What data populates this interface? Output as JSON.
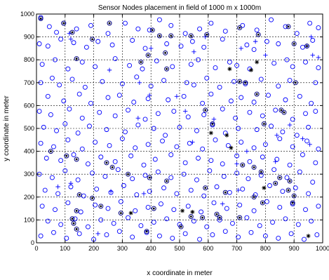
{
  "chart_data": {
    "type": "scatter",
    "title": "Sensor Nodes placement in field of 1000 m x 1000m",
    "xlabel": "x coordinate in meter",
    "ylabel": "y coordinate in meter",
    "xlim": [
      0,
      1000
    ],
    "ylim": [
      0,
      1000
    ],
    "xticks": [
      0,
      100,
      200,
      300,
      400,
      500,
      600,
      700,
      800,
      900,
      1000
    ],
    "yticks": [
      0,
      100,
      200,
      300,
      400,
      500,
      600,
      700,
      800,
      900,
      1000
    ],
    "grid": true,
    "grid_style": "dashed",
    "colors": {
      "marker": "#0000ff",
      "dark": "#000080",
      "axis": "#000000"
    },
    "series": [
      {
        "marker": "o",
        "color": "#0000ff",
        "x": [
          15,
          45,
          70,
          95,
          140,
          190,
          250,
          310,
          355,
          395,
          430,
          470,
          520,
          570,
          610,
          660,
          720,
          770,
          820,
          870,
          910,
          955,
          985,
          10,
          40,
          85,
          130,
          175,
          215,
          265,
          335,
          380,
          455,
          505,
          545,
          585,
          650,
          735,
          760,
          805,
          845,
          930,
          965,
          20,
          65,
          110,
          160,
          205,
          275,
          325,
          370,
          420,
          475,
          540,
          565,
          625,
          675,
          700,
          745,
          830,
          875,
          895,
          940,
          985,
          15,
          55,
          80,
          125,
          170,
          230,
          300,
          350,
          400,
          445,
          525,
          550,
          595,
          640,
          690,
          730,
          785,
          845,
          885,
          975,
          40,
          95,
          150,
          190,
          250,
          290,
          340,
          390,
          460,
          515,
          580,
          610,
          680,
          715,
          760,
          810,
          870,
          920,
          960,
          10,
          50,
          115,
          160,
          220,
          275,
          320,
          380,
          425,
          480,
          530,
          585,
          650,
          695,
          745,
          790,
          835,
          895,
          940,
          975,
          25,
          70,
          100,
          145,
          185,
          245,
          310,
          355,
          410,
          450,
          500,
          560,
          615,
          660,
          705,
          770,
          820,
          860,
          910,
          950,
          15,
          60,
          110,
          160,
          205,
          255,
          300,
          345,
          390,
          440,
          490,
          535,
          580,
          625,
          670,
          715,
          760,
          800,
          850,
          895,
          945,
          985,
          35,
          85,
          130,
          180,
          225,
          275,
          330,
          375,
          415,
          470,
          520,
          565,
          610,
          650,
          700,
          745,
          790,
          840,
          885,
          930,
          975,
          10,
          55,
          100,
          145,
          195,
          240,
          285,
          335,
          380,
          425,
          470,
          515,
          560,
          605,
          655,
          700,
          740,
          785,
          830,
          875,
          920,
          965,
          30,
          75,
          120,
          165,
          210,
          260,
          305,
          350,
          395,
          445,
          490,
          540,
          585,
          630,
          675,
          720,
          765,
          815,
          860,
          905,
          950,
          20,
          65,
          110,
          155,
          205,
          250,
          295,
          345,
          390,
          435,
          480,
          530,
          575,
          620,
          665,
          710,
          760,
          805,
          850,
          895,
          940,
          985,
          40,
          85,
          135,
          180,
          225,
          270,
          320,
          365,
          410,
          455,
          500,
          550,
          595,
          640,
          685,
          735,
          780,
          825,
          870,
          915,
          960,
          15,
          60,
          105,
          150,
          200,
          245,
          290,
          335,
          385,
          430,
          475,
          520,
          570,
          615,
          660,
          705,
          750,
          800,
          845,
          890,
          935,
          980
        ],
        "y": [
          985,
          945,
          920,
          960,
          935,
          950,
          915,
          960,
          935,
          930,
          975,
          950,
          915,
          935,
          960,
          925,
          950,
          930,
          975,
          945,
          915,
          960,
          940,
          870,
          860,
          890,
          875,
          855,
          880,
          865,
          885,
          850,
          870,
          860,
          880,
          855,
          890,
          865,
          845,
          880,
          870,
          855,
          885,
          780,
          800,
          760,
          790,
          770,
          805,
          775,
          760,
          795,
          770,
          780,
          800,
          765,
          790,
          775,
          760,
          785,
          800,
          770,
          790,
          765,
          700,
          720,
          690,
          715,
          680,
          705,
          695,
          725,
          685,
          710,
          700,
          690,
          720,
          680,
          705,
          695,
          715,
          685,
          710,
          700,
          640,
          620,
          650,
          610,
          635,
          645,
          615,
          630,
          625,
          640,
          610,
          650,
          620,
          635,
          615,
          645,
          625,
          640,
          610,
          575,
          560,
          585,
          545,
          570,
          555,
          580,
          540,
          565,
          575,
          550,
          560,
          585,
          545,
          570,
          555,
          580,
          540,
          565,
          575,
          505,
          490,
          520,
          480,
          510,
          495,
          485,
          515,
          500,
          470,
          505,
          490,
          515,
          480,
          500,
          495,
          510,
          485,
          470,
          505,
          435,
          420,
          450,
          410,
          440,
          425,
          455,
          415,
          430,
          445,
          420,
          435,
          410,
          450,
          425,
          440,
          415,
          430,
          455,
          420,
          445,
          410,
          370,
          360,
          385,
          345,
          375,
          355,
          380,
          340,
          365,
          385,
          350,
          370,
          360,
          345,
          380,
          355,
          375,
          365,
          340,
          385,
          350,
          300,
          285,
          315,
          275,
          305,
          290,
          320,
          280,
          295,
          310,
          285,
          300,
          275,
          315,
          290,
          305,
          280,
          295,
          320,
          285,
          310,
          265,
          230,
          215,
          245,
          205,
          235,
          220,
          250,
          210,
          225,
          240,
          215,
          230,
          205,
          245,
          220,
          235,
          210,
          250,
          225,
          240,
          215,
          160,
          145,
          175,
          135,
          165,
          150,
          180,
          140,
          155,
          170,
          145,
          160,
          135,
          175,
          150,
          165,
          140,
          180,
          155,
          170,
          145,
          160,
          95,
          80,
          105,
          70,
          100,
          85,
          110,
          75,
          90,
          105,
          80,
          95,
          70,
          100,
          85,
          110,
          75,
          90,
          105,
          80,
          95,
          30,
          45,
          20,
          40,
          15,
          35,
          50,
          25,
          45,
          30,
          20,
          40,
          15,
          35,
          50,
          25,
          45,
          30,
          20,
          40,
          15,
          35
        ]
      },
      {
        "marker": "+",
        "color": "#0000ff",
        "x": [
          115,
          120,
          400,
          550,
          590,
          715,
          765,
          800,
          945,
          960,
          965,
          985,
          255,
          395,
          360,
          490,
          520,
          545,
          620,
          735,
          840,
          885,
          930,
          955,
          355,
          700,
          835,
          260,
          375,
          705,
          75,
          120,
          650,
          215
        ],
        "y": [
          915,
          890,
          850,
          835,
          900,
          850,
          880,
          820,
          860,
          900,
          820,
          810,
          755,
          645,
          700,
          640,
          575,
          440,
          540,
          400,
          470,
          515,
          455,
          430,
          545,
          345,
          355,
          225,
          215,
          230,
          245,
          260,
          170,
          40
        ]
      },
      {
        "marker": "o-filled",
        "color": "#000080",
        "x": [
          15,
          95,
          125,
          255,
          405,
          430,
          470,
          540,
          595,
          710,
          775,
          880,
          900,
          945,
          140,
          195,
          365,
          390,
          450,
          455,
          590,
          615,
          710,
          730,
          770,
          795,
          855,
          865,
          905,
          50,
          105,
          140,
          245,
          265,
          320,
          395,
          455,
          590,
          660,
          720,
          760,
          785,
          850,
          885,
          140,
          295,
          630,
          760,
          835,
          880,
          900,
          150,
          195,
          225,
          125,
          130,
          140,
          385,
          410,
          505,
          540,
          580,
          640,
          710,
          790,
          895
        ],
        "y": [
          980,
          960,
          920,
          960,
          930,
          905,
          905,
          905,
          910,
          940,
          910,
          945,
          870,
          860,
          805,
          890,
          790,
          820,
          830,
          760,
          580,
          520,
          705,
          700,
          650,
          520,
          580,
          570,
          700,
          400,
          380,
          365,
          350,
          330,
          300,
          285,
          270,
          240,
          220,
          340,
          330,
          310,
          285,
          270,
          140,
          130,
          125,
          200,
          260,
          230,
          205,
          210,
          195,
          160,
          105,
          85,
          60,
          50,
          150,
          70,
          115,
          110,
          110,
          110,
          175,
          175
        ]
      },
      {
        "marker": "*",
        "color": "#000000",
        "x": [
          675,
          750,
          770,
          610,
          665,
          680,
          330,
          795,
          510,
          545,
          950
        ],
        "y": [
          760,
          755,
          790,
          480,
          470,
          415,
          130,
          240,
          140,
          135,
          30
        ]
      }
    ]
  }
}
